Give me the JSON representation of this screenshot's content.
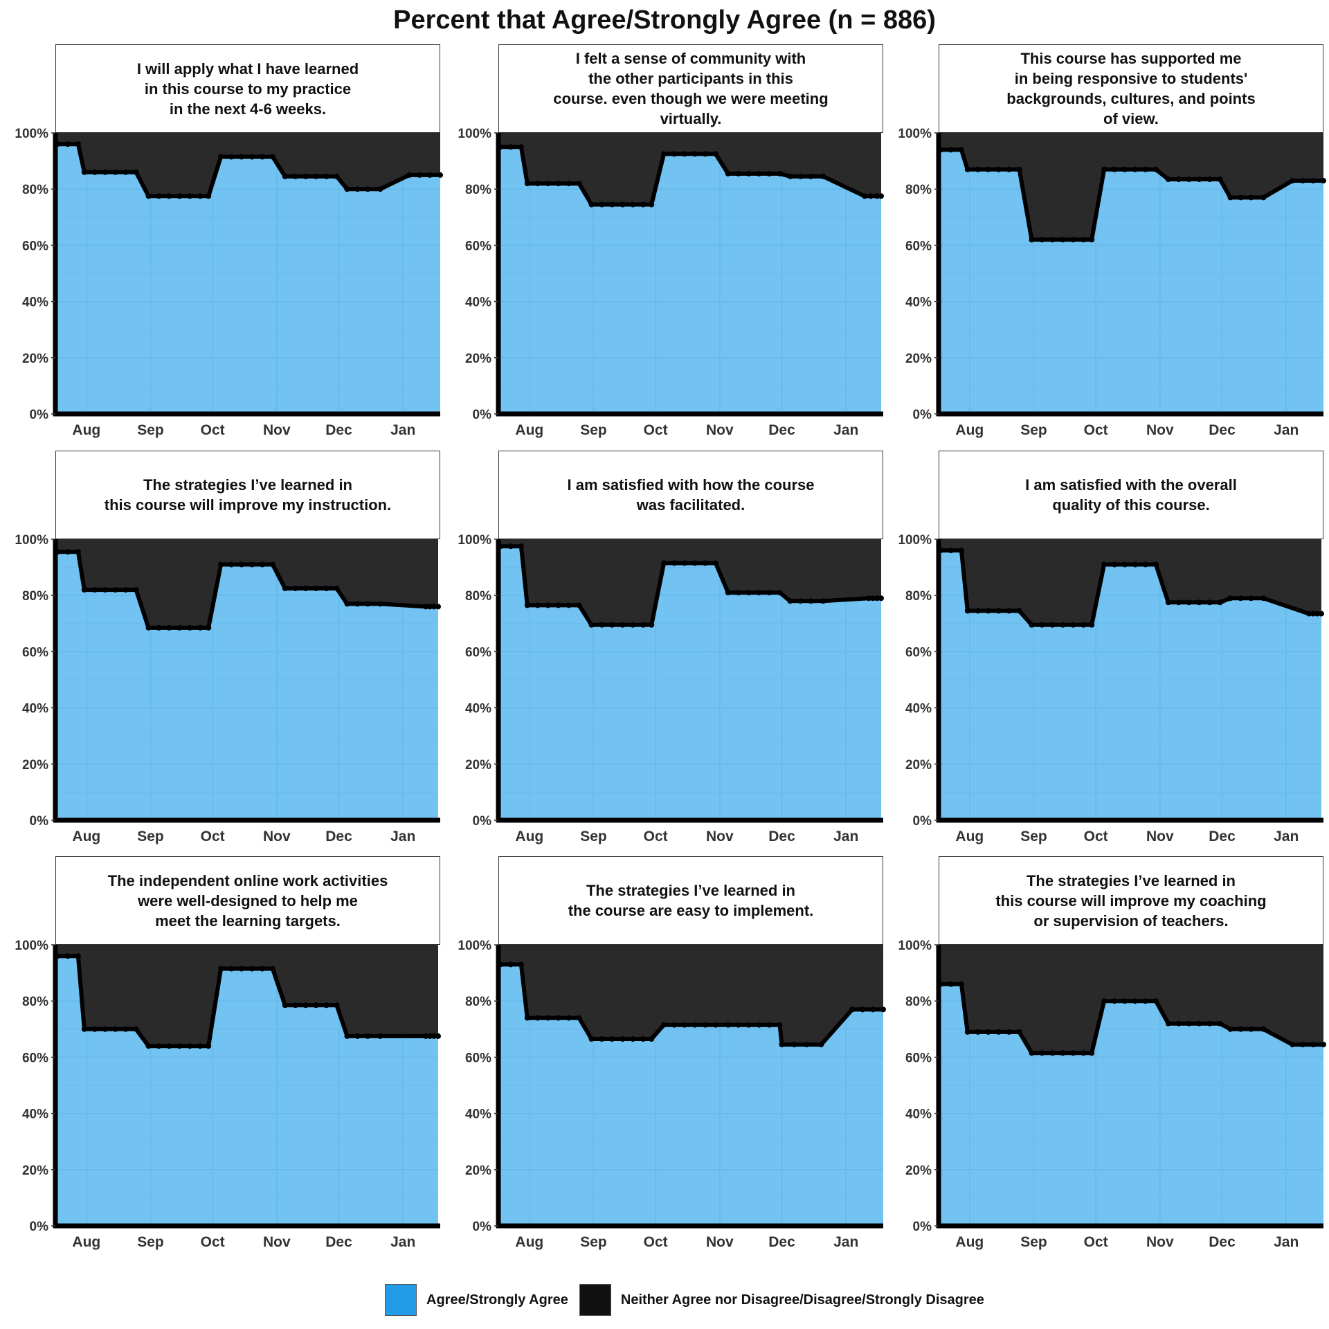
{
  "title": "Percent that Agree/Strongly Agree (n = 886)",
  "colors": {
    "agree": "#72C2F2",
    "agree_legend": "#229CE6",
    "disagree": "#2A2A2A",
    "disagree_legend": "#111111",
    "line": "#000000",
    "grid": "#62B4E6"
  },
  "legend": {
    "items": [
      {
        "label": "Agree/Strongly Agree",
        "color": "#229CE6"
      },
      {
        "label": "Neither Agree nor Disagree/Disagree/Strongly Disagree",
        "color": "#111111"
      }
    ]
  },
  "chart_data": [
    {
      "type": "area",
      "title": "I will apply what I have learned\nin this course to my practice\nin the next 4-6 weeks.",
      "x_ticks": [
        "Aug",
        "Sep",
        "Oct",
        "Nov",
        "Dec",
        "Jan"
      ],
      "y_ticks": [
        "0%",
        "20%",
        "40%",
        "60%",
        "80%",
        "100%"
      ],
      "ylim": [
        0,
        100
      ],
      "xlim": [
        "Jul 17",
        "Jan 19"
      ],
      "series": [
        {
          "name": "Agree/Strongly Agree",
          "x": [
            "Jul 18",
            "Jul 23",
            "Jul 28",
            "Jul 31",
            "Aug 5",
            "Aug 10",
            "Aug 15",
            "Aug 20",
            "Aug 25",
            "Aug 31",
            "Sep 5",
            "Sep 10",
            "Sep 15",
            "Sep 20",
            "Sep 25",
            "Sep 29",
            "Oct 5",
            "Oct 10",
            "Oct 15",
            "Oct 20",
            "Oct 25",
            "Oct 30",
            "Nov 5",
            "Nov 10",
            "Nov 15",
            "Nov 20",
            "Nov 25",
            "Nov 30",
            "Dec 5",
            "Dec 10",
            "Dec 15",
            "Dec 21",
            "Jan 4",
            "Jan 9",
            "Jan 14",
            "Jan 19"
          ],
          "y": [
            96,
            96,
            96,
            86,
            86,
            86,
            86,
            86,
            86,
            77.5,
            77.5,
            77.5,
            77.5,
            77.5,
            77.5,
            77.5,
            91.5,
            91.5,
            91.5,
            91.5,
            91.5,
            91.5,
            84.5,
            84.5,
            84.5,
            84.5,
            84.5,
            84.5,
            80,
            80,
            80,
            80,
            85,
            85,
            85,
            85
          ]
        }
      ]
    },
    {
      "type": "area",
      "title": "I felt a sense of community with\nthe other participants in this\ncourse. even though we were meeting\nvirtually.",
      "x_ticks": [
        "Aug",
        "Sep",
        "Oct",
        "Nov",
        "Dec",
        "Jan"
      ],
      "y_ticks": [
        "0%",
        "20%",
        "40%",
        "60%",
        "80%",
        "100%"
      ],
      "ylim": [
        0,
        100
      ],
      "xlim": [
        "Jul 17",
        "Jan 19"
      ],
      "series": [
        {
          "name": "Agree/Strongly Agree",
          "x": [
            "Jul 18",
            "Jul 23",
            "Jul 28",
            "Jul 31",
            "Aug 5",
            "Aug 10",
            "Aug 15",
            "Aug 20",
            "Aug 25",
            "Aug 31",
            "Sep 5",
            "Sep 10",
            "Sep 15",
            "Sep 20",
            "Sep 25",
            "Sep 29",
            "Oct 5",
            "Oct 10",
            "Oct 15",
            "Oct 20",
            "Oct 25",
            "Oct 30",
            "Nov 5",
            "Nov 10",
            "Nov 15",
            "Nov 20",
            "Nov 25",
            "Nov 30",
            "Dec 5",
            "Dec 10",
            "Dec 15",
            "Dec 21",
            "Jan 10",
            "Jan 13",
            "Jan 16",
            "Jan 18"
          ],
          "y": [
            95,
            95,
            95,
            82,
            82,
            82,
            82,
            82,
            82,
            74.5,
            74.5,
            74.5,
            74.5,
            74.5,
            74.5,
            74.5,
            92.5,
            92.5,
            92.5,
            92.5,
            92.5,
            92.5,
            85.5,
            85.5,
            85.5,
            85.5,
            85.5,
            85.5,
            84.5,
            84.5,
            84.5,
            84.5,
            77.5,
            77.5,
            77.5,
            77.5
          ]
        }
      ]
    },
    {
      "type": "area",
      "title": "This course has supported me\nin being responsive to students'\nbackgrounds, cultures, and points\nof view.",
      "x_ticks": [
        "Aug",
        "Sep",
        "Oct",
        "Nov",
        "Dec",
        "Jan"
      ],
      "y_ticks": [
        "0%",
        "20%",
        "40%",
        "60%",
        "80%",
        "100%"
      ],
      "ylim": [
        0,
        100
      ],
      "xlim": [
        "Jul 17",
        "Jan 19"
      ],
      "series": [
        {
          "name": "Agree/Strongly Agree",
          "x": [
            "Jul 18",
            "Jul 23",
            "Jul 28",
            "Jul 31",
            "Aug 5",
            "Aug 10",
            "Aug 15",
            "Aug 20",
            "Aug 25",
            "Aug 31",
            "Sep 5",
            "Sep 10",
            "Sep 15",
            "Sep 20",
            "Sep 25",
            "Sep 29",
            "Oct 5",
            "Oct 10",
            "Oct 15",
            "Oct 20",
            "Oct 25",
            "Oct 30",
            "Nov 5",
            "Nov 10",
            "Nov 15",
            "Nov 20",
            "Nov 25",
            "Nov 30",
            "Dec 5",
            "Dec 10",
            "Dec 15",
            "Dec 21",
            "Jan 4",
            "Jan 9",
            "Jan 14",
            "Jan 19"
          ],
          "y": [
            94,
            94,
            94,
            87,
            87,
            87,
            87,
            87,
            87,
            62,
            62,
            62,
            62,
            62,
            62,
            62,
            87,
            87,
            87,
            87,
            87,
            87,
            83.5,
            83.5,
            83.5,
            83.5,
            83.5,
            83.5,
            77,
            77,
            77,
            77,
            83,
            83,
            83,
            83
          ]
        }
      ]
    },
    {
      "type": "area",
      "title": "The strategies I’ve learned in\nthis course will improve my instruction.",
      "x_ticks": [
        "Aug",
        "Sep",
        "Oct",
        "Nov",
        "Dec",
        "Jan"
      ],
      "y_ticks": [
        "0%",
        "20%",
        "40%",
        "60%",
        "80%",
        "100%"
      ],
      "ylim": [
        0,
        100
      ],
      "xlim": [
        "Jul 17",
        "Jan 19"
      ],
      "series": [
        {
          "name": "Agree/Strongly Agree",
          "x": [
            "Jul 18",
            "Jul 23",
            "Jul 28",
            "Jul 31",
            "Aug 5",
            "Aug 10",
            "Aug 15",
            "Aug 20",
            "Aug 25",
            "Aug 31",
            "Sep 5",
            "Sep 10",
            "Sep 15",
            "Sep 20",
            "Sep 25",
            "Sep 29",
            "Oct 5",
            "Oct 10",
            "Oct 15",
            "Oct 20",
            "Oct 25",
            "Oct 30",
            "Nov 5",
            "Nov 10",
            "Nov 15",
            "Nov 20",
            "Nov 25",
            "Nov 30",
            "Dec 5",
            "Dec 10",
            "Dec 15",
            "Dec 21",
            "Jan 12",
            "Jan 14",
            "Jan 16",
            "Jan 18"
          ],
          "y": [
            95.5,
            95.5,
            95.5,
            82,
            82,
            82,
            82,
            82,
            82,
            68.5,
            68.5,
            68.5,
            68.5,
            68.5,
            68.5,
            68.5,
            91,
            91,
            91,
            91,
            91,
            91,
            82.5,
            82.5,
            82.5,
            82.5,
            82.5,
            82.5,
            77,
            77,
            77,
            77,
            76,
            76,
            76,
            76
          ]
        }
      ]
    },
    {
      "type": "area",
      "title": "I am satisfied with how the course\nwas facilitated.",
      "x_ticks": [
        "Aug",
        "Sep",
        "Oct",
        "Nov",
        "Dec",
        "Jan"
      ],
      "y_ticks": [
        "0%",
        "20%",
        "40%",
        "60%",
        "80%",
        "100%"
      ],
      "ylim": [
        0,
        100
      ],
      "xlim": [
        "Jul 17",
        "Jan 19"
      ],
      "series": [
        {
          "name": "Agree/Strongly Agree",
          "x": [
            "Jul 18",
            "Jul 23",
            "Jul 28",
            "Jul 31",
            "Aug 5",
            "Aug 10",
            "Aug 15",
            "Aug 20",
            "Aug 25",
            "Aug 31",
            "Sep 5",
            "Sep 10",
            "Sep 15",
            "Sep 20",
            "Sep 25",
            "Sep 29",
            "Oct 5",
            "Oct 10",
            "Oct 15",
            "Oct 20",
            "Oct 25",
            "Oct 30",
            "Nov 5",
            "Nov 10",
            "Nov 15",
            "Nov 20",
            "Nov 25",
            "Nov 30",
            "Dec 5",
            "Dec 10",
            "Dec 15",
            "Dec 21",
            "Jan 12",
            "Jan 14",
            "Jan 16",
            "Jan 18"
          ],
          "y": [
            97.5,
            97.5,
            97.5,
            76.5,
            76.5,
            76.5,
            76.5,
            76.5,
            76.5,
            69.5,
            69.5,
            69.5,
            69.5,
            69.5,
            69.5,
            69.5,
            91.5,
            91.5,
            91.5,
            91.5,
            91.5,
            91.5,
            81,
            81,
            81,
            81,
            81,
            81,
            78,
            78,
            78,
            78,
            79,
            79,
            79,
            79
          ]
        }
      ]
    },
    {
      "type": "area",
      "title": "I am satisfied with the overall\nquality of this course.",
      "x_ticks": [
        "Aug",
        "Sep",
        "Oct",
        "Nov",
        "Dec",
        "Jan"
      ],
      "y_ticks": [
        "0%",
        "20%",
        "40%",
        "60%",
        "80%",
        "100%"
      ],
      "ylim": [
        0,
        100
      ],
      "xlim": [
        "Jul 17",
        "Jan 19"
      ],
      "series": [
        {
          "name": "Agree/Strongly Agree",
          "x": [
            "Jul 18",
            "Jul 23",
            "Jul 28",
            "Jul 31",
            "Aug 5",
            "Aug 10",
            "Aug 15",
            "Aug 20",
            "Aug 25",
            "Aug 31",
            "Sep 5",
            "Sep 10",
            "Sep 15",
            "Sep 20",
            "Sep 25",
            "Sep 29",
            "Oct 5",
            "Oct 10",
            "Oct 15",
            "Oct 20",
            "Oct 25",
            "Oct 30",
            "Nov 5",
            "Nov 10",
            "Nov 15",
            "Nov 20",
            "Nov 25",
            "Nov 30",
            "Dec 5",
            "Dec 10",
            "Dec 15",
            "Dec 21",
            "Jan 12",
            "Jan 14",
            "Jan 16",
            "Jan 18"
          ],
          "y": [
            96,
            96,
            96,
            74.5,
            74.5,
            74.5,
            74.5,
            74.5,
            74.5,
            69.5,
            69.5,
            69.5,
            69.5,
            69.5,
            69.5,
            69.5,
            91,
            91,
            91,
            91,
            91,
            91,
            77.5,
            77.5,
            77.5,
            77.5,
            77.5,
            77.5,
            79,
            79,
            79,
            79,
            73.5,
            73.5,
            73.5,
            73.5
          ]
        }
      ]
    },
    {
      "type": "area",
      "title": "The independent online work activities\nwere well-designed to help me\nmeet the learning targets.",
      "x_ticks": [
        "Aug",
        "Sep",
        "Oct",
        "Nov",
        "Dec",
        "Jan"
      ],
      "y_ticks": [
        "0%",
        "20%",
        "40%",
        "60%",
        "80%",
        "100%"
      ],
      "ylim": [
        0,
        100
      ],
      "xlim": [
        "Jul 17",
        "Jan 19"
      ],
      "series": [
        {
          "name": "Agree/Strongly Agree",
          "x": [
            "Jul 18",
            "Jul 23",
            "Jul 28",
            "Jul 31",
            "Aug 5",
            "Aug 10",
            "Aug 15",
            "Aug 20",
            "Aug 25",
            "Aug 31",
            "Sep 5",
            "Sep 10",
            "Sep 15",
            "Sep 20",
            "Sep 25",
            "Sep 29",
            "Oct 5",
            "Oct 10",
            "Oct 15",
            "Oct 20",
            "Oct 25",
            "Oct 30",
            "Nov 5",
            "Nov 10",
            "Nov 15",
            "Nov 20",
            "Nov 25",
            "Nov 30",
            "Dec 5",
            "Dec 10",
            "Dec 15",
            "Dec 21",
            "Jan 12",
            "Jan 14",
            "Jan 16",
            "Jan 18"
          ],
          "y": [
            96,
            96,
            96,
            70,
            70,
            70,
            70,
            70,
            70,
            64,
            64,
            64,
            64,
            64,
            64,
            64,
            91.5,
            91.5,
            91.5,
            91.5,
            91.5,
            91.5,
            78.5,
            78.5,
            78.5,
            78.5,
            78.5,
            78.5,
            67.5,
            67.5,
            67.5,
            67.5,
            67.5,
            67.5,
            67.5,
            67.5
          ]
        }
      ]
    },
    {
      "type": "area",
      "title": "The strategies I’ve learned in\nthe course are easy to implement.",
      "x_ticks": [
        "Aug",
        "Sep",
        "Oct",
        "Nov",
        "Dec",
        "Jan"
      ],
      "y_ticks": [
        "0%",
        "20%",
        "40%",
        "60%",
        "80%",
        "100%"
      ],
      "ylim": [
        0,
        100
      ],
      "xlim": [
        "Jul 17",
        "Jan 19"
      ],
      "series": [
        {
          "name": "Agree/Strongly Agree",
          "x": [
            "Jul 18",
            "Jul 23",
            "Jul 28",
            "Jul 31",
            "Aug 5",
            "Aug 10",
            "Aug 15",
            "Aug 20",
            "Aug 25",
            "Aug 31",
            "Sep 5",
            "Sep 10",
            "Sep 15",
            "Sep 20",
            "Sep 25",
            "Sep 29",
            "Oct 5",
            "Oct 10",
            "Oct 15",
            "Oct 20",
            "Oct 25",
            "Oct 30",
            "Nov 5",
            "Nov 10",
            "Nov 15",
            "Nov 20",
            "Nov 25",
            "Nov 30",
            "Dec 1",
            "Dec 7",
            "Dec 13",
            "Dec 20",
            "Jan 4",
            "Jan 9",
            "Jan 14",
            "Jan 19"
          ],
          "y": [
            93,
            93,
            93,
            74,
            74,
            74,
            74,
            74,
            74,
            66.5,
            66.5,
            66.5,
            66.5,
            66.5,
            66.5,
            66.5,
            71.5,
            71.5,
            71.5,
            71.5,
            71.5,
            71.5,
            71.5,
            71.5,
            71.5,
            71.5,
            71.5,
            71.5,
            64.5,
            64.5,
            64.5,
            64.5,
            77,
            77,
            77,
            77
          ]
        }
      ]
    },
    {
      "type": "area",
      "title": "The strategies I’ve learned in\nthis course will improve my coaching\nor supervision of teachers.",
      "x_ticks": [
        "Aug",
        "Sep",
        "Oct",
        "Nov",
        "Dec",
        "Jan"
      ],
      "y_ticks": [
        "0%",
        "20%",
        "40%",
        "60%",
        "80%",
        "100%"
      ],
      "ylim": [
        0,
        100
      ],
      "xlim": [
        "Jul 17",
        "Jan 19"
      ],
      "series": [
        {
          "name": "Agree/Strongly Agree",
          "x": [
            "Jul 18",
            "Jul 23",
            "Jul 28",
            "Jul 31",
            "Aug 5",
            "Aug 10",
            "Aug 15",
            "Aug 20",
            "Aug 25",
            "Aug 31",
            "Sep 5",
            "Sep 10",
            "Sep 15",
            "Sep 20",
            "Sep 25",
            "Sep 29",
            "Oct 5",
            "Oct 10",
            "Oct 15",
            "Oct 20",
            "Oct 25",
            "Oct 30",
            "Nov 5",
            "Nov 10",
            "Nov 15",
            "Nov 20",
            "Nov 25",
            "Nov 30",
            "Dec 5",
            "Dec 10",
            "Dec 15",
            "Dec 21",
            "Jan 4",
            "Jan 9",
            "Jan 14",
            "Jan 19"
          ],
          "y": [
            86,
            86,
            86,
            69,
            69,
            69,
            69,
            69,
            69,
            61.5,
            61.5,
            61.5,
            61.5,
            61.5,
            61.5,
            61.5,
            80,
            80,
            80,
            80,
            80,
            80,
            72,
            72,
            72,
            72,
            72,
            72,
            70,
            70,
            70,
            70,
            64.5,
            64.5,
            64.5,
            64.5
          ]
        }
      ]
    }
  ]
}
